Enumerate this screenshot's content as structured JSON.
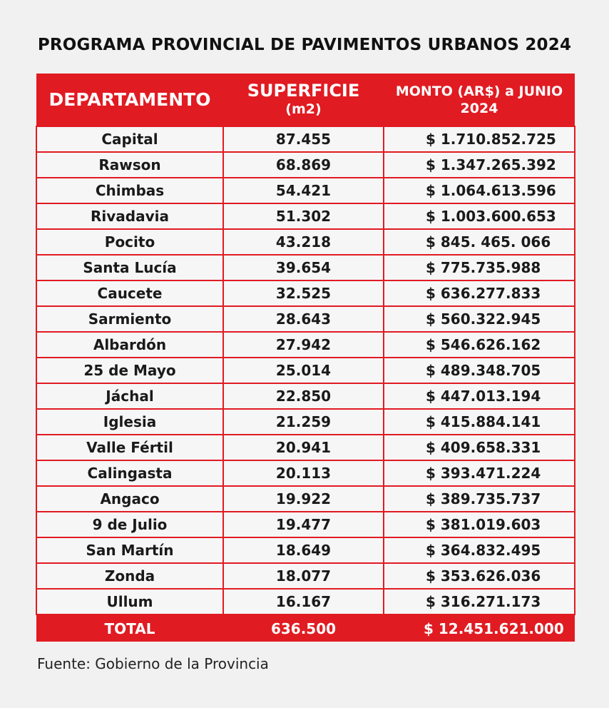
{
  "title": "PROGRAMA PROVINCIAL DE PAVIMENTOS URBANOS 2024",
  "headers": {
    "departamento": "DEPARTAMENTO",
    "superficie": "SUPERFICIE",
    "superficie_unit": "(m2)",
    "monto_line1": "MONTO (AR$) a JUNIO",
    "monto_line2": "2024"
  },
  "rows": [
    {
      "dep": "Capital",
      "sup": "87.455",
      "monto": "$ 1.710.852.725"
    },
    {
      "dep": "Rawson",
      "sup": "68.869",
      "monto": "$ 1.347.265.392"
    },
    {
      "dep": "Chimbas",
      "sup": "54.421",
      "monto": "$ 1.064.613.596"
    },
    {
      "dep": "Rivadavia",
      "sup": "51.302",
      "monto": "$ 1.003.600.653"
    },
    {
      "dep": "Pocito",
      "sup": "43.218",
      "monto": "$ 845. 465. 066"
    },
    {
      "dep": "Santa Lucía",
      "sup": "39.654",
      "monto": "$ 775.735.988"
    },
    {
      "dep": "Caucete",
      "sup": "32.525",
      "monto": "$ 636.277.833"
    },
    {
      "dep": "Sarmiento",
      "sup": "28.643",
      "monto": "$ 560.322.945"
    },
    {
      "dep": "Albardón",
      "sup": "27.942",
      "monto": "$ 546.626.162"
    },
    {
      "dep": "25 de Mayo",
      "sup": "25.014",
      "monto": "$ 489.348.705"
    },
    {
      "dep": "Jáchal",
      "sup": "22.850",
      "monto": "$ 447.013.194"
    },
    {
      "dep": "Iglesia",
      "sup": "21.259",
      "monto": "$ 415.884.141"
    },
    {
      "dep": "Valle Fértil",
      "sup": "20.941",
      "monto": "$ 409.658.331"
    },
    {
      "dep": "Calingasta",
      "sup": "20.113",
      "monto": "$ 393.471.224"
    },
    {
      "dep": "Angaco",
      "sup": "19.922",
      "monto": "$ 389.735.737"
    },
    {
      "dep": "9 de Julio",
      "sup": "19.477",
      "monto": "$ 381.019.603"
    },
    {
      "dep": "San Martín",
      "sup": "18.649",
      "monto": "$ 364.832.495"
    },
    {
      "dep": "Zonda",
      "sup": "18.077",
      "monto": "$ 353.626.036"
    },
    {
      "dep": "Ullum",
      "sup": "16.167",
      "monto": "$ 316.271.173"
    }
  ],
  "total": {
    "label": "TOTAL",
    "sup": "636.500",
    "monto": "$ 12.451.621.000"
  },
  "source": "Fuente: Gobierno de la Provincia"
}
